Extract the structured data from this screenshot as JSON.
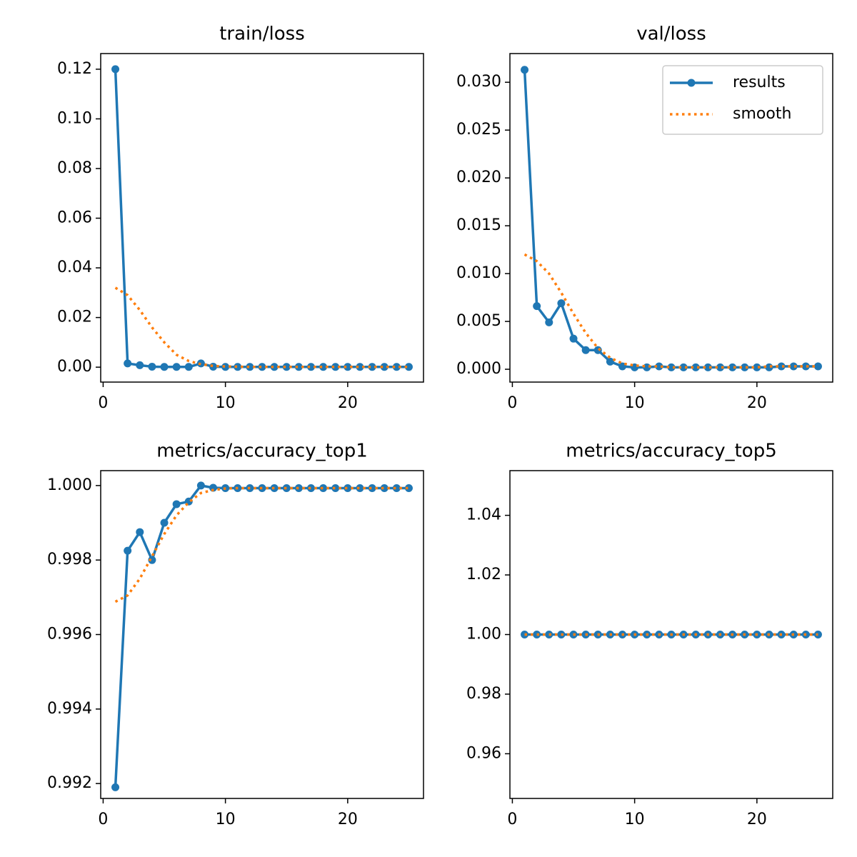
{
  "chart_data": [
    {
      "type": "line",
      "title": "train/loss",
      "x": [
        1,
        2,
        3,
        4,
        5,
        6,
        7,
        8,
        9,
        10,
        11,
        12,
        13,
        14,
        15,
        16,
        17,
        18,
        19,
        20,
        21,
        22,
        23,
        24,
        25
      ],
      "series": [
        {
          "color": "#1f77b4",
          "style": "solid-marker",
          "values": [
            0.12,
            0.0015,
            0.0008,
            0.0002,
            0.0001,
            0.0001,
            0.0001,
            0.0015,
            0.0002,
            0.0001,
            0.0001,
            0.0001,
            0.0001,
            0.0001,
            0.0001,
            0.0001,
            0.0001,
            0.0001,
            0.0001,
            0.0001,
            0.0001,
            0.0001,
            0.0001,
            0.0001,
            0.0001
          ]
        },
        {
          "color": "#ff7f0e",
          "style": "dotted",
          "values": [
            0.032,
            0.029,
            0.023,
            0.016,
            0.01,
            0.005,
            0.0025,
            0.0012,
            0.0005,
            0.0003,
            0.0002,
            0.0001,
            0.0001,
            0.0001,
            0.0001,
            0.0001,
            0.0001,
            0.0001,
            0.0001,
            0.0001,
            0.0001,
            0.0001,
            0.0001,
            0.0001,
            0.0001
          ]
        }
      ],
      "xlim": [
        -0.2,
        26.2
      ],
      "xticks": [
        0,
        10,
        20
      ],
      "ylim": [
        -0.006,
        0.1263
      ],
      "yticks": [
        {
          "value": 0,
          "label": "0.00"
        },
        {
          "value": 0.02,
          "label": "0.02"
        },
        {
          "value": 0.04,
          "label": "0.04"
        },
        {
          "value": 0.06,
          "label": "0.06"
        },
        {
          "value": 0.08,
          "label": "0.08"
        },
        {
          "value": 0.1,
          "label": "0.10"
        },
        {
          "value": 0.12,
          "label": "0.12"
        }
      ]
    },
    {
      "type": "line",
      "title": "val/loss",
      "x": [
        1,
        2,
        3,
        4,
        5,
        6,
        7,
        8,
        9,
        10,
        11,
        12,
        13,
        14,
        15,
        16,
        17,
        18,
        19,
        20,
        21,
        22,
        23,
        24,
        25
      ],
      "series": [
        {
          "name": "results",
          "color": "#1f77b4",
          "style": "solid-marker",
          "values": [
            0.0313,
            0.0066,
            0.0049,
            0.0069,
            0.0032,
            0.002,
            0.002,
            0.0008,
            0.0003,
            0.0002,
            0.0002,
            0.0003,
            0.0002,
            0.0002,
            0.0002,
            0.0002,
            0.0002,
            0.0002,
            0.0002,
            0.0002,
            0.0002,
            0.0003,
            0.0003,
            0.0003,
            0.0003
          ]
        },
        {
          "name": "smooth",
          "color": "#ff7f0e",
          "style": "dotted",
          "values": [
            0.012,
            0.0113,
            0.01,
            0.008,
            0.0058,
            0.0038,
            0.0022,
            0.0012,
            0.0006,
            0.0004,
            0.0003,
            0.0003,
            0.0002,
            0.0002,
            0.0002,
            0.0002,
            0.0002,
            0.0002,
            0.0002,
            0.0002,
            0.0003,
            0.0003,
            0.0003,
            0.0003,
            0.0003
          ]
        }
      ],
      "legend": "upper right",
      "xlim": [
        -0.2,
        26.2
      ],
      "xticks": [
        0,
        10,
        20
      ],
      "ylim": [
        -0.00134,
        0.033
      ],
      "yticks": [
        {
          "value": 0,
          "label": "0.000"
        },
        {
          "value": 0.005,
          "label": "0.005"
        },
        {
          "value": 0.01,
          "label": "0.010"
        },
        {
          "value": 0.015,
          "label": "0.015"
        },
        {
          "value": 0.02,
          "label": "0.020"
        },
        {
          "value": 0.025,
          "label": "0.025"
        },
        {
          "value": 0.03,
          "label": "0.030"
        }
      ]
    },
    {
      "type": "line",
      "title": "metrics/accuracy_top1",
      "x": [
        1,
        2,
        3,
        4,
        5,
        6,
        7,
        8,
        9,
        10,
        11,
        12,
        13,
        14,
        15,
        16,
        17,
        18,
        19,
        20,
        21,
        22,
        23,
        24,
        25
      ],
      "series": [
        {
          "color": "#1f77b4",
          "style": "solid-marker",
          "values": [
            0.9919,
            0.99825,
            0.99875,
            0.998,
            0.999,
            0.9995,
            0.99957,
            1.0,
            0.99994,
            0.99993,
            0.99993,
            0.99993,
            0.99993,
            0.99993,
            0.99993,
            0.99993,
            0.99993,
            0.99993,
            0.99993,
            0.99993,
            0.99993,
            0.99993,
            0.99993,
            0.99993,
            0.99993
          ]
        },
        {
          "color": "#ff7f0e",
          "style": "dotted",
          "values": [
            0.99688,
            0.99705,
            0.9975,
            0.9981,
            0.9987,
            0.9992,
            0.99955,
            0.9998,
            0.99988,
            0.99992,
            0.99993,
            0.99993,
            0.99993,
            0.99993,
            0.99993,
            0.99993,
            0.99993,
            0.99993,
            0.99993,
            0.99993,
            0.99993,
            0.99993,
            0.99993,
            0.99993,
            0.99993
          ]
        }
      ],
      "xlim": [
        -0.2,
        26.2
      ],
      "xticks": [
        0,
        10,
        20
      ],
      "ylim": [
        0.9916,
        1.0004
      ],
      "yticks": [
        {
          "value": 0.992,
          "label": "0.992"
        },
        {
          "value": 0.994,
          "label": "0.994"
        },
        {
          "value": 0.996,
          "label": "0.996"
        },
        {
          "value": 0.998,
          "label": "0.998"
        },
        {
          "value": 1.0,
          "label": "1.000"
        }
      ]
    },
    {
      "type": "line",
      "title": "metrics/accuracy_top5",
      "x": [
        1,
        2,
        3,
        4,
        5,
        6,
        7,
        8,
        9,
        10,
        11,
        12,
        13,
        14,
        15,
        16,
        17,
        18,
        19,
        20,
        21,
        22,
        23,
        24,
        25
      ],
      "series": [
        {
          "color": "#1f77b4",
          "style": "solid-marker",
          "values": [
            1,
            1,
            1,
            1,
            1,
            1,
            1,
            1,
            1,
            1,
            1,
            1,
            1,
            1,
            1,
            1,
            1,
            1,
            1,
            1,
            1,
            1,
            1,
            1,
            1
          ]
        },
        {
          "color": "#ff7f0e",
          "style": "dotted",
          "values": [
            1,
            1,
            1,
            1,
            1,
            1,
            1,
            1,
            1,
            1,
            1,
            1,
            1,
            1,
            1,
            1,
            1,
            1,
            1,
            1,
            1,
            1,
            1,
            1,
            1
          ]
        }
      ],
      "xlim": [
        -0.2,
        26.2
      ],
      "xticks": [
        0,
        10,
        20
      ],
      "ylim": [
        0.945,
        1.055
      ],
      "yticks": [
        {
          "value": 0.96,
          "label": "0.96"
        },
        {
          "value": 0.98,
          "label": "0.98"
        },
        {
          "value": 1.0,
          "label": "1.00"
        },
        {
          "value": 1.02,
          "label": "1.02"
        },
        {
          "value": 1.04,
          "label": "1.04"
        }
      ]
    }
  ]
}
